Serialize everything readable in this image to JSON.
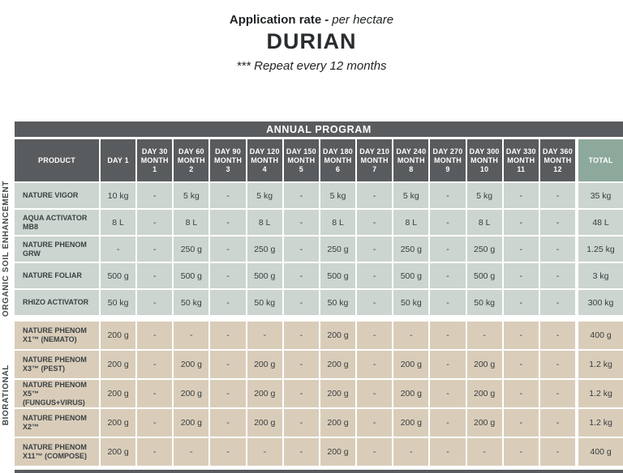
{
  "header": {
    "title_bold": "Application rate",
    "title_separator": "-",
    "title_italic": "per hectare",
    "crop": "DURIAN",
    "note": "*** Repeat every 12 months"
  },
  "program": {
    "banner": "ANNUAL PROGRAM"
  },
  "colors": {
    "header_dark": "#595c5e",
    "total_header_green": "#8da99c",
    "organic_row_bg": "#ccd5cf",
    "biorational_row_bg": "#d9cdba"
  },
  "table": {
    "product_header": "PRODUCT",
    "total_header": "TOTAL",
    "day_columns": [
      [
        "DAY 1"
      ],
      [
        "DAY 30",
        "MONTH",
        "1"
      ],
      [
        "DAY 60",
        "MONTH",
        "2"
      ],
      [
        "DAY 90",
        "MONTH",
        "3"
      ],
      [
        "DAY 120",
        "MONTH",
        "4"
      ],
      [
        "DAY 150",
        "MONTH",
        "5"
      ],
      [
        "DAY 180",
        "MONTH",
        "6"
      ],
      [
        "DAY 210",
        "MONTH",
        "7"
      ],
      [
        "DAY 240",
        "MONTH",
        "8"
      ],
      [
        "DAY 270",
        "MONTH",
        "9"
      ],
      [
        "DAY 300",
        "MONTH",
        "10"
      ],
      [
        "DAY 330",
        "MONTH",
        "11"
      ],
      [
        "DAY 360",
        "MONTH",
        "12"
      ]
    ],
    "groups": [
      {
        "label": "ORGANIC SOIL ENHANCEMENT",
        "rows": [
          {
            "product": "NATURE VIGOR",
            "values": [
              "10 kg",
              "-",
              "5 kg",
              "-",
              "5 kg",
              "-",
              "5 kg",
              "-",
              "5 kg",
              "-",
              "5 kg",
              "-",
              "-"
            ],
            "total": "35 kg"
          },
          {
            "product": "AQUA ACTIVATOR MB8",
            "values": [
              "8 L",
              "-",
              "8 L",
              "-",
              "8 L",
              "-",
              "8 L",
              "-",
              "8 L",
              "-",
              "8 L",
              "-",
              "-"
            ],
            "total": "48 L"
          },
          {
            "product": "NATURE PHENOM GRW",
            "values": [
              "-",
              "-",
              "250 g",
              "-",
              "250 g",
              "-",
              "250 g",
              "-",
              "250 g",
              "-",
              "250 g",
              "-",
              "-"
            ],
            "total": "1.25 kg"
          },
          {
            "product": "NATURE FOLIAR",
            "values": [
              "500 g",
              "-",
              "500 g",
              "-",
              "500 g",
              "-",
              "500 g",
              "-",
              "500 g",
              "-",
              "500 g",
              "-",
              "-"
            ],
            "total": "3 kg"
          },
          {
            "product": "RHIZO ACTIVATOR",
            "values": [
              "50 kg",
              "-",
              "50 kg",
              "-",
              "50 kg",
              "-",
              "50 kg",
              "-",
              "50 kg",
              "-",
              "50 kg",
              "-",
              "-"
            ],
            "total": "300 kg"
          }
        ]
      },
      {
        "label": "BIORATIONAL",
        "rows": [
          {
            "product": "NATURE PHENOM X1™ (NEMATO)",
            "values": [
              "200 g",
              "-",
              "-",
              "-",
              "-",
              "-",
              "200 g",
              "-",
              "-",
              "-",
              "-",
              "-",
              "-"
            ],
            "total": "400 g"
          },
          {
            "product": "NATURE PHENOM X3™ (PEST)",
            "values": [
              "200 g",
              "-",
              "200 g",
              "-",
              "200 g",
              "-",
              "200 g",
              "-",
              "200 g",
              "-",
              "200 g",
              "-",
              "-"
            ],
            "total": "1.2 kg"
          },
          {
            "product": "NATURE PHENOM X5™ (FUNGUS+VIRUS)",
            "values": [
              "200 g",
              "-",
              "200 g",
              "-",
              "200 g",
              "-",
              "200 g",
              "-",
              "200 g",
              "-",
              "200 g",
              "-",
              "-"
            ],
            "total": "1.2 kg"
          },
          {
            "product": "NATURE PHENOM X2™",
            "values": [
              "200 g",
              "-",
              "200 g",
              "-",
              "200 g",
              "-",
              "200 g",
              "-",
              "200 g",
              "-",
              "200 g",
              "-",
              "-"
            ],
            "total": "1.2 kg"
          },
          {
            "product": "NATURE PHENOM X11™ (COMPOSE)",
            "values": [
              "200 g",
              "-",
              "-",
              "-",
              "-",
              "-",
              "200 g",
              "-",
              "-",
              "-",
              "-",
              "-",
              "-"
            ],
            "total": "400 g"
          }
        ]
      }
    ]
  }
}
